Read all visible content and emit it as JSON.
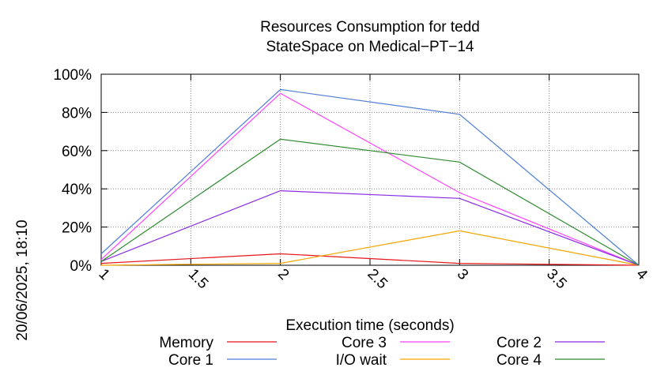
{
  "chart_data": {
    "type": "line",
    "title_line1": "Resources Consumption for tedd",
    "title_line2": "StateSpace on Medical−PT−14",
    "xlabel": "Execution time (seconds)",
    "ylabel": "",
    "timestamp": "20/06/2025, 18:10",
    "x": [
      1,
      2,
      3,
      4
    ],
    "xlim": [
      1,
      4
    ],
    "ylim": [
      0,
      100
    ],
    "x_ticks": [
      1,
      1.5,
      2,
      2.5,
      3,
      3.5,
      4
    ],
    "x_tick_labels": [
      "1",
      "1.5",
      "2",
      "2.5",
      "3",
      "3.5",
      "4"
    ],
    "y_ticks": [
      0,
      20,
      40,
      60,
      80,
      100
    ],
    "y_tick_labels": [
      "0%",
      "20%",
      "40%",
      "60%",
      "80%",
      "100%"
    ],
    "grid": true,
    "legend_position": "bottom",
    "series": [
      {
        "name": "Memory",
        "color": "#e8141a",
        "values": [
          1,
          6,
          1,
          0
        ]
      },
      {
        "name": "Core 1",
        "color": "#4f7fd6",
        "values": [
          6,
          92,
          79,
          0
        ]
      },
      {
        "name": "Core 3",
        "color": "#ff44ff",
        "values": [
          3,
          90,
          38,
          0
        ]
      },
      {
        "name": "I/O wait",
        "color": "#f5a500",
        "values": [
          0,
          1,
          18,
          0
        ]
      },
      {
        "name": "Core 2",
        "color": "#8a2be2",
        "values": [
          2,
          39,
          35,
          0
        ]
      },
      {
        "name": "Core 4",
        "color": "#2e8b2e",
        "values": [
          2,
          66,
          54,
          0
        ]
      }
    ]
  }
}
